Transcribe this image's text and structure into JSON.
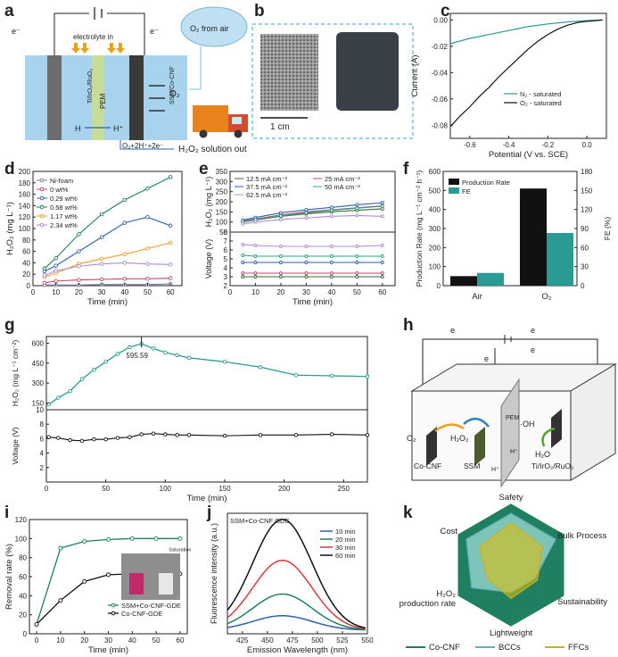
{
  "colors": {
    "green": "#1f7f60",
    "teal": "#2a9a94",
    "black": "#111111",
    "blue": "#2f5faa",
    "orange": "#e8a020",
    "purple": "#b08ad8",
    "yellow": "#e4c000",
    "light": "#8fd0c8"
  },
  "panels": {
    "a": {
      "label": "a",
      "electrolyte": "electrolyte in",
      "o2_air": "O₂ from air",
      "o2": "O₂",
      "pem": "PEM",
      "anode": "Ti/IrO₂/RuO₂",
      "cathode": "SSM/Co-CNF",
      "h": "H",
      "hplus": "H⁺",
      "e_left": "e⁻",
      "e_right": "e⁻",
      "reaction": "O₂+2H⁺+2e⁻",
      "out": "H₂O₂ solution out"
    },
    "b": {
      "label": "b",
      "scale": "1 cm"
    },
    "c": {
      "label": "c",
      "xlabel": "Potential (V vs. SCE)",
      "ylabel": "Current (A)",
      "xticks": [
        "-0.6",
        "-0.4",
        "-0.2",
        "0.0"
      ],
      "yticks": [
        "0.00",
        "-0.02",
        "-0.04",
        "-0.06",
        "-0.08"
      ],
      "legend": [
        "N₂ - saturated",
        "O₂ - saturated"
      ]
    },
    "d": {
      "label": "d",
      "xlabel": "Time (min)",
      "ylabel": "H₂O₂ (mg L⁻¹)",
      "xticks": [
        "0",
        "10",
        "20",
        "30",
        "40",
        "50",
        "60"
      ],
      "yticks": [
        "0",
        "20",
        "40",
        "60",
        "80",
        "100",
        "120",
        "140",
        "160",
        "180",
        "200"
      ],
      "legend": [
        "Ni-foam",
        "0 wt%",
        "0.29 wt%",
        "0.58 wt%",
        "1.17 wt%",
        "2.34 wt%"
      ]
    },
    "e": {
      "label": "e",
      "xlabel": "Time (min)",
      "ylabel_top": "H₂O₂ (mg L⁻¹)",
      "ylabel_bot": "Voltage (V)",
      "xticks": [
        "0",
        "10",
        "20",
        "30",
        "40",
        "50",
        "60"
      ],
      "yticks_top": [
        "350",
        "300",
        "250",
        "200",
        "150",
        "100",
        "50"
      ],
      "yticks_bot": [
        "8",
        "7",
        "6",
        "5",
        "4",
        "3",
        "2"
      ],
      "legend": [
        "12.5 mA cm⁻²",
        "25 mA cm⁻²",
        "37.5 mA cm⁻²",
        "50 mA cm⁻²",
        "62.5 mA cm⁻²"
      ]
    },
    "f": {
      "label": "f",
      "ylabel_left": "Production Rate (mg L⁻¹ cm⁻² h⁻¹)",
      "ylabel_right": "FE (%)",
      "yticks_left": [
        "0",
        "100",
        "200",
        "300",
        "400",
        "500",
        "600"
      ],
      "yticks_right": [
        "0",
        "30",
        "60",
        "90",
        "120",
        "150",
        "180"
      ],
      "legend": [
        "Production Rate",
        "FE"
      ]
    },
    "g": {
      "label": "g",
      "xlabel": "Time (min)",
      "ylabel_top": "H₂O₂ (mg L⁻¹ cm⁻²)",
      "ylabel_bot": "Voltage (V)",
      "annotation": "595.59",
      "xticks": [
        "0",
        "50",
        "100",
        "150",
        "200",
        "250"
      ],
      "yticks_top": [
        "600",
        "450",
        "300",
        "150"
      ],
      "yticks_bot": [
        "10",
        "8",
        "6",
        "4",
        "2"
      ]
    },
    "h": {
      "label": "h",
      "e1": "e",
      "e2": "e",
      "e3": "e",
      "e4": "e",
      "o2": "O₂",
      "h2o2": "H₂O₂",
      "oh": "·OH",
      "h2o": "H₂O",
      "pem": "PEM",
      "hplus": "H⁺",
      "cocnf": "Co-CNF",
      "ssm": "SSM",
      "anode": "Ti/IrO₂/RuO₂"
    },
    "i": {
      "label": "i",
      "xlabel": "Time (min)",
      "ylabel": "Removal rate (%)",
      "xticks": [
        "0",
        "10",
        "20",
        "30",
        "40",
        "50",
        "60"
      ],
      "yticks": [
        "0",
        "20",
        "40",
        "60",
        "80",
        "100",
        "120"
      ],
      "legend": [
        "SSM+Co-CNF-GDE",
        "Co-CNF-GDE"
      ],
      "annotation": "Saturation"
    },
    "j": {
      "label": "j",
      "title": "SSM+Co-CNF GDE",
      "xlabel": "Emission Wavelength (nm)",
      "ylabel": "Fluorescence intensity (a.u.)",
      "xticks": [
        "425",
        "450",
        "475",
        "500",
        "525",
        "550"
      ],
      "legend": [
        "10 min",
        "20 min",
        "30 min",
        "60 min"
      ]
    },
    "k": {
      "label": "k",
      "axes": [
        "Safety",
        "Bulk Process",
        "Sustainability",
        "Lightweight",
        "H₂O₂ production rate",
        "Cost"
      ],
      "legend": [
        "Co-CNF",
        "BCCs",
        "FFCs"
      ]
    }
  },
  "chart_data": [
    {
      "type": "line",
      "panel": "c",
      "xlabel": "Potential (V vs. SCE)",
      "ylabel": "Current (A)",
      "xlim": [
        -0.7,
        0.1
      ],
      "ylim": [
        -0.09,
        0.005
      ],
      "series": [
        {
          "name": "N₂ - saturated",
          "x": [
            -0.7,
            -0.6,
            -0.5,
            -0.4,
            -0.3,
            -0.2,
            -0.1,
            0.0,
            0.08
          ],
          "y": [
            -0.018,
            -0.014,
            -0.011,
            -0.008,
            -0.005,
            -0.003,
            -0.0015,
            -0.0005,
            0.0
          ]
        },
        {
          "name": "O₂ - saturated",
          "x": [
            -0.7,
            -0.65,
            -0.6,
            -0.55,
            -0.5,
            -0.45,
            -0.4,
            -0.35,
            -0.3,
            -0.25,
            -0.2,
            -0.15,
            -0.1,
            -0.05,
            0.0,
            0.08
          ],
          "y": [
            -0.081,
            -0.073,
            -0.066,
            -0.058,
            -0.051,
            -0.043,
            -0.036,
            -0.029,
            -0.022,
            -0.016,
            -0.011,
            -0.007,
            -0.004,
            -0.002,
            -0.001,
            0.0
          ]
        }
      ]
    },
    {
      "type": "line",
      "panel": "d",
      "xlabel": "Time (min)",
      "ylabel": "H₂O₂ (mg L⁻¹)",
      "xlim": [
        0,
        65
      ],
      "ylim": [
        0,
        200
      ],
      "x": [
        5,
        10,
        20,
        30,
        40,
        50,
        60
      ],
      "series": [
        {
          "name": "Ni-foam",
          "values": [
            1,
            1,
            1,
            2,
            2,
            2,
            3
          ]
        },
        {
          "name": "0 wt%",
          "values": [
            5,
            8,
            10,
            11,
            12,
            12,
            13
          ]
        },
        {
          "name": "0.29 wt%",
          "values": [
            25,
            35,
            60,
            85,
            110,
            120,
            105
          ]
        },
        {
          "name": "0.58 wt%",
          "values": [
            30,
            48,
            90,
            125,
            150,
            170,
            190
          ]
        },
        {
          "name": "1.17 wt%",
          "values": [
            15,
            22,
            38,
            47,
            55,
            65,
            75
          ]
        },
        {
          "name": "2.34 wt%",
          "values": [
            18,
            26,
            34,
            38,
            40,
            38,
            37
          ]
        }
      ]
    },
    {
      "type": "line",
      "panel": "e",
      "xlabel": "Time (min)",
      "x": [
        5,
        10,
        20,
        30,
        40,
        50,
        60
      ],
      "ylim_top": [
        50,
        350
      ],
      "ylim_bot": [
        2,
        8
      ],
      "series_h2o2": [
        {
          "name": "12.5 mA cm⁻²",
          "values": [
            100,
            110,
            128,
            140,
            150,
            158,
            165
          ]
        },
        {
          "name": "25 mA cm⁻²",
          "values": [
            105,
            115,
            135,
            150,
            160,
            170,
            180
          ]
        },
        {
          "name": "37.5 mA cm⁻²",
          "values": [
            110,
            122,
            145,
            160,
            172,
            185,
            195
          ]
        },
        {
          "name": "50 mA cm⁻²",
          "values": [
            100,
            112,
            130,
            145,
            158,
            168,
            178
          ]
        },
        {
          "name": "62.5 mA cm⁻²",
          "values": [
            90,
            100,
            112,
            120,
            128,
            132,
            128
          ]
        }
      ],
      "series_voltage": [
        {
          "name": "12.5 mA cm⁻²",
          "values": [
            3.0,
            3.0,
            3.0,
            3.0,
            3.0,
            3.0,
            3.0
          ]
        },
        {
          "name": "25 mA cm⁻²",
          "values": [
            3.4,
            3.4,
            3.4,
            3.4,
            3.4,
            3.4,
            3.4
          ]
        },
        {
          "name": "37.5 mA cm⁻²",
          "values": [
            4.6,
            4.6,
            4.6,
            4.6,
            4.6,
            4.6,
            4.6
          ]
        },
        {
          "name": "50 mA cm⁻²",
          "values": [
            5.4,
            5.3,
            5.3,
            5.3,
            5.3,
            5.3,
            5.3
          ]
        },
        {
          "name": "62.5 mA cm⁻²",
          "values": [
            6.6,
            6.5,
            6.4,
            6.4,
            6.4,
            6.4,
            6.5
          ]
        }
      ]
    },
    {
      "type": "bar",
      "panel": "f",
      "categories": [
        "Air",
        "O₂"
      ],
      "series": [
        {
          "name": "Production Rate",
          "axis": "left",
          "values": [
            50,
            510
          ]
        },
        {
          "name": "FE",
          "axis": "right",
          "values": [
            20,
            83
          ]
        }
      ],
      "ylim_left": [
        0,
        600
      ],
      "ylim_right": [
        0,
        180
      ]
    },
    {
      "type": "line",
      "panel": "g",
      "xlabel": "Time (min)",
      "xlim": [
        0,
        270
      ],
      "ylim_top": [
        100,
        650
      ],
      "ylim_bot": [
        0,
        10
      ],
      "series_h2o2": {
        "x": [
          2,
          10,
          20,
          30,
          40,
          50,
          60,
          70,
          80,
          90,
          100,
          110,
          120,
          150,
          180,
          210,
          240,
          270
        ],
        "values": [
          140,
          190,
          240,
          330,
          400,
          460,
          520,
          570,
          596,
          560,
          530,
          510,
          490,
          460,
          420,
          360,
          355,
          350
        ]
      },
      "series_voltage": {
        "x": [
          2,
          10,
          20,
          30,
          40,
          50,
          60,
          70,
          80,
          90,
          100,
          110,
          120,
          150,
          180,
          210,
          240,
          270
        ],
        "values": [
          6.2,
          6.1,
          5.8,
          5.7,
          5.9,
          5.9,
          6.1,
          6.2,
          6.6,
          6.7,
          6.6,
          6.5,
          6.5,
          6.4,
          6.5,
          6.5,
          6.6,
          6.5
        ]
      },
      "annotation": "595.59"
    },
    {
      "type": "line",
      "panel": "i",
      "xlabel": "Time (min)",
      "ylabel": "Removal rate (%)",
      "xlim": [
        0,
        60
      ],
      "ylim": [
        0,
        120
      ],
      "x": [
        0,
        10,
        20,
        30,
        40,
        50,
        60
      ],
      "series": [
        {
          "name": "SSM+Co-CNF-GDE",
          "values": [
            10,
            90,
            97,
            99,
            100,
            100,
            100
          ]
        },
        {
          "name": "Co-CNF-GDE",
          "values": [
            10,
            35,
            55,
            62,
            63,
            63,
            63
          ]
        }
      ]
    },
    {
      "type": "line",
      "panel": "j",
      "title": "SSM+Co-CNF GDE",
      "xlabel": "Emission Wavelength (nm)",
      "ylabel": "Fluorescence intensity (a.u.)",
      "xlim": [
        410,
        550
      ],
      "peak": 465,
      "series": [
        {
          "name": "10 min",
          "amplitude": 0.12
        },
        {
          "name": "20 min",
          "amplitude": 0.3
        },
        {
          "name": "30 min",
          "amplitude": 0.58
        },
        {
          "name": "60 min",
          "amplitude": 0.92
        }
      ]
    },
    {
      "type": "radar",
      "panel": "k",
      "axes": [
        "Safety",
        "Bulk Process",
        "Sustainability",
        "Lightweight",
        "H₂O₂ production rate",
        "Cost"
      ],
      "series": [
        {
          "name": "Co-CNF",
          "values": [
            1,
            1,
            1,
            1,
            1,
            1
          ]
        },
        {
          "name": "BCCs",
          "values": [
            0.85,
            0.85,
            0.45,
            0.45,
            0.75,
            0.85
          ]
        },
        {
          "name": "FFCs",
          "values": [
            0.7,
            0.6,
            0.5,
            0.55,
            0.45,
            0.6
          ]
        }
      ]
    }
  ]
}
